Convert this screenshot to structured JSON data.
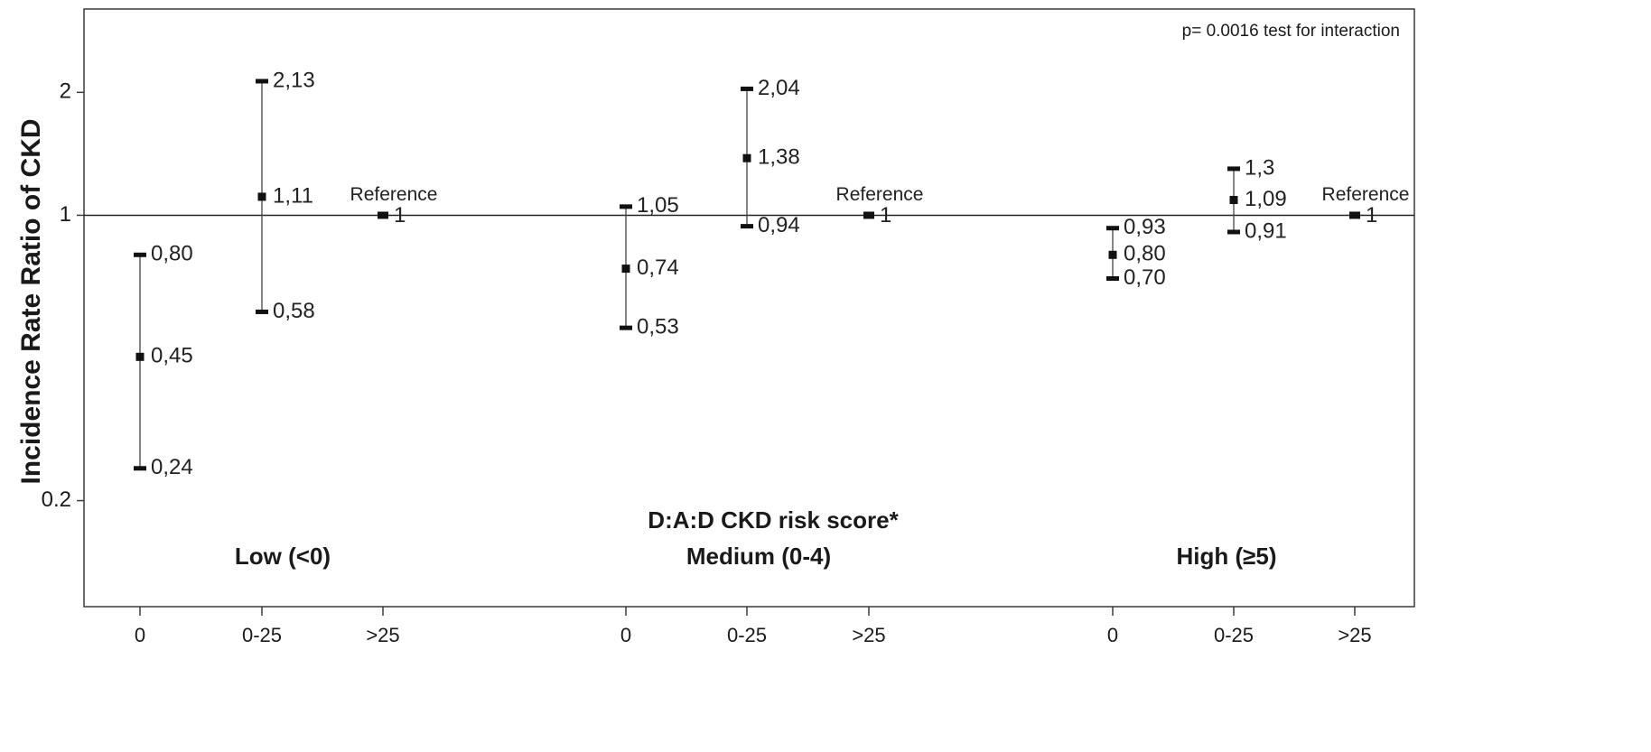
{
  "chart_data": {
    "type": "scatter",
    "ylabel": "Incidence Rate Ratio of CKD",
    "xlabel": "D:A:D CKD risk score*",
    "yscale": "log",
    "ylim": [
      0.11,
      3.2
    ],
    "yticks": [
      {
        "value": 0.2,
        "label": "0.2"
      },
      {
        "value": 1,
        "label": "1"
      },
      {
        "value": 2,
        "label": "2"
      }
    ],
    "reference_line": 1,
    "annotation": "p= 0.0016 test for interaction",
    "groups": [
      {
        "name": "Low (<0)",
        "points": [
          {
            "x": "0",
            "estimate": 0.45,
            "lower": 0.24,
            "upper": 0.8,
            "est_label": "0,45",
            "lower_label": "0,24",
            "upper_label": "0,80"
          },
          {
            "x": "0-25",
            "estimate": 1.11,
            "lower": 0.58,
            "upper": 2.13,
            "est_label": "1,11",
            "lower_label": "0,58",
            "upper_label": "2,13"
          },
          {
            "x": ">25",
            "estimate": 1,
            "est_label": "1",
            "reference_label": "Reference"
          }
        ]
      },
      {
        "name": "Medium (0-4)",
        "points": [
          {
            "x": "0",
            "estimate": 0.74,
            "lower": 0.53,
            "upper": 1.05,
            "est_label": "0,74",
            "lower_label": "0,53",
            "upper_label": "1,05"
          },
          {
            "x": "0-25",
            "estimate": 1.38,
            "lower": 0.94,
            "upper": 2.04,
            "est_label": "1,38",
            "lower_label": "0,94",
            "upper_label": "2,04"
          },
          {
            "x": ">25",
            "estimate": 1,
            "est_label": "1",
            "reference_label": "Reference"
          }
        ]
      },
      {
        "name": "High (≥5)",
        "points": [
          {
            "x": "0",
            "estimate": 0.8,
            "lower": 0.7,
            "upper": 0.93,
            "est_label": "0,80",
            "lower_label": "0,70",
            "upper_label": "0,93"
          },
          {
            "x": "0-25",
            "estimate": 1.09,
            "lower": 0.91,
            "upper": 1.3,
            "est_label": "1,09",
            "lower_label": "0,91",
            "upper_label": "1,3"
          },
          {
            "x": ">25",
            "estimate": 1,
            "est_label": "1",
            "reference_label": "Reference"
          }
        ]
      }
    ],
    "colors": {
      "axis": "#3a3a3a",
      "marker": "#111111",
      "text": "#1a1a1a"
    }
  }
}
